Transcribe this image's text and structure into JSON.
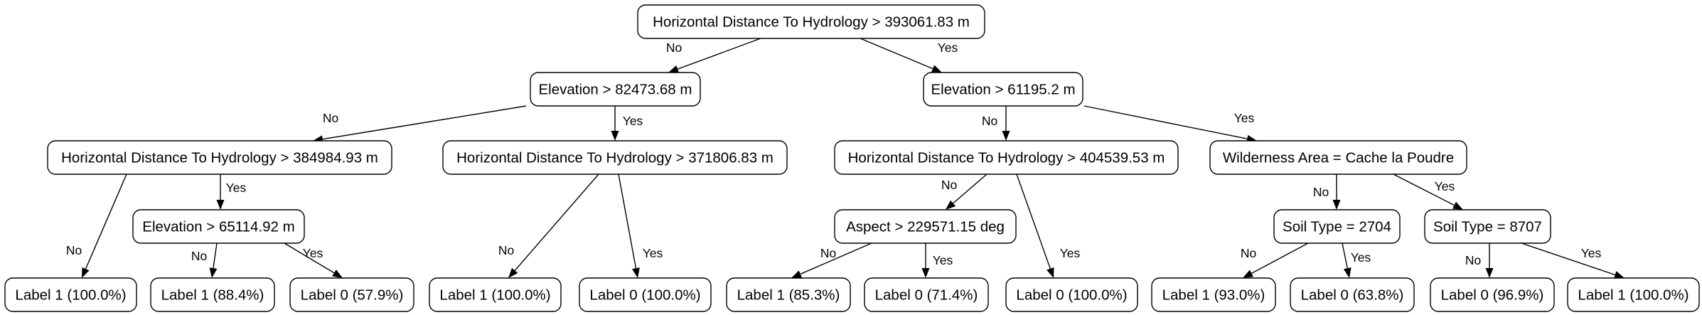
{
  "tree": {
    "nodes": [
      {
        "id": "n0",
        "label": "Horizontal Distance To Hydrology > 393061.83 m"
      },
      {
        "id": "n1",
        "label": "Elevation > 82473.68 m"
      },
      {
        "id": "n2",
        "label": "Elevation > 61195.2 m"
      },
      {
        "id": "n3",
        "label": "Horizontal Distance To Hydrology > 384984.93 m"
      },
      {
        "id": "n4",
        "label": "Horizontal Distance To Hydrology > 371806.83 m"
      },
      {
        "id": "n5",
        "label": "Horizontal Distance To Hydrology > 404539.53 m"
      },
      {
        "id": "n6",
        "label": "Wilderness Area = Cache la Poudre"
      },
      {
        "id": "n7",
        "label": "Elevation > 65114.92 m"
      },
      {
        "id": "n8",
        "label": "Aspect > 229571.15 deg"
      },
      {
        "id": "n9",
        "label": "Soil Type = 2704"
      },
      {
        "id": "n10",
        "label": "Soil Type = 8707"
      },
      {
        "id": "l0",
        "label": "Label 1 (100.0%)"
      },
      {
        "id": "l1",
        "label": "Label 1 (88.4%)"
      },
      {
        "id": "l2",
        "label": "Label 0 (57.9%)"
      },
      {
        "id": "l3",
        "label": "Label 1 (100.0%)"
      },
      {
        "id": "l4",
        "label": "Label 0 (100.0%)"
      },
      {
        "id": "l5",
        "label": "Label 1 (85.3%)"
      },
      {
        "id": "l6",
        "label": "Label 0 (71.4%)"
      },
      {
        "id": "l7",
        "label": "Label 0 (100.0%)"
      },
      {
        "id": "l8",
        "label": "Label 1 (93.0%)"
      },
      {
        "id": "l9",
        "label": "Label 0 (63.8%)"
      },
      {
        "id": "l10",
        "label": "Label 0 (96.9%)"
      },
      {
        "id": "l11",
        "label": "Label 1 (100.0%)"
      }
    ],
    "edges": [
      {
        "from": "n0",
        "to": "n1",
        "label": "No"
      },
      {
        "from": "n0",
        "to": "n2",
        "label": "Yes"
      },
      {
        "from": "n1",
        "to": "n3",
        "label": "No"
      },
      {
        "from": "n1",
        "to": "n4",
        "label": "Yes"
      },
      {
        "from": "n2",
        "to": "n5",
        "label": "No"
      },
      {
        "from": "n2",
        "to": "n6",
        "label": "Yes"
      },
      {
        "from": "n3",
        "to": "l0",
        "label": "No"
      },
      {
        "from": "n3",
        "to": "n7",
        "label": "Yes"
      },
      {
        "from": "n7",
        "to": "l1",
        "label": "No"
      },
      {
        "from": "n7",
        "to": "l2",
        "label": "Yes"
      },
      {
        "from": "n4",
        "to": "l3",
        "label": "No"
      },
      {
        "from": "n4",
        "to": "l4",
        "label": "Yes"
      },
      {
        "from": "n5",
        "to": "n8",
        "label": "No"
      },
      {
        "from": "n5",
        "to": "l7",
        "label": "Yes"
      },
      {
        "from": "n8",
        "to": "l5",
        "label": "No"
      },
      {
        "from": "n8",
        "to": "l6",
        "label": "Yes"
      },
      {
        "from": "n6",
        "to": "n9",
        "label": "No"
      },
      {
        "from": "n6",
        "to": "n10",
        "label": "Yes"
      },
      {
        "from": "n9",
        "to": "l8",
        "label": "No"
      },
      {
        "from": "n9",
        "to": "l9",
        "label": "Yes"
      },
      {
        "from": "n10",
        "to": "l10",
        "label": "No"
      },
      {
        "from": "n10",
        "to": "l11",
        "label": "Yes"
      }
    ]
  }
}
